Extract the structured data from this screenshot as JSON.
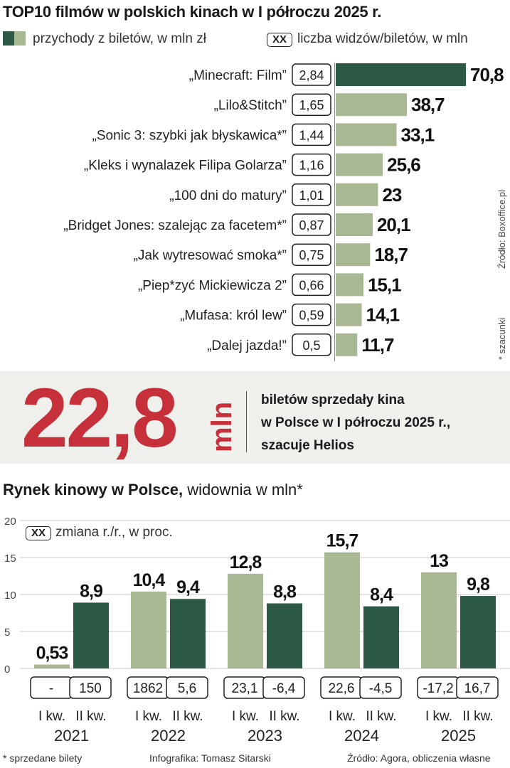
{
  "top10": {
    "title": "TOP10 filmów w polskich kinach w I półroczu 2025 r.",
    "legend_revenue": "przychody z biletów, w mln zł",
    "legend_box": "XX",
    "legend_viewers": "liczba widzów/biletów, w mln",
    "source": "Źródło: Boxoffice.pl",
    "note": "* szacunki"
  },
  "highlight": {
    "value": "22,8",
    "unit": "mln",
    "line1": "biletów sprzedały kina",
    "line2": "w Polsce w I półroczu 2025 r.,",
    "line3": "szacuje Helios"
  },
  "market": {
    "title_bold": "Rynek kinowy w Polsce,",
    "title_rest": " widownia w mln*",
    "legend_box": "XX",
    "legend_change": "zmiana r./r., w proc."
  },
  "footer": {
    "note": "* sprzedane bilety",
    "author": "Infografika: Tomasz Sitarski",
    "source": "Źródło: Agora, obliczenia własne"
  },
  "colors": {
    "dark_green": "#2d5a45",
    "light_green": "#a8b893",
    "accent_red": "#c5303a"
  },
  "chart_data": [
    {
      "type": "bar",
      "orientation": "horizontal",
      "title": "TOP10 filmów w polskich kinach w I półroczu 2025 r.",
      "categories": [
        "„Minecraft: Film”",
        "„Lilo&Stitch”",
        "„Sonic 3: szybki jak błyskawica*”",
        "„Kleks i wynalazek Filipa Golarza”",
        "„100 dni do matury”",
        "„Bridget Jones: szalejąc za facetem*”",
        "„Jak wytresować smoka*”",
        "„Piep*zyć Mickiewicza 2”",
        "„Mufasa: król lew”",
        "„Dalej jazda!”"
      ],
      "values": [
        70.8,
        38.7,
        33.1,
        25.6,
        23,
        20.1,
        18.7,
        15.1,
        14.1,
        11.7
      ],
      "value_labels": [
        "70,8",
        "38,7",
        "33,1",
        "25,6",
        "23",
        "20,1",
        "18,7",
        "15,1",
        "14,1",
        "11,7"
      ],
      "viewers": [
        "2,84",
        "1,65",
        "1,44",
        "1,16",
        "1,01",
        "0,87",
        "0,75",
        "0,66",
        "0,59",
        "0,5"
      ],
      "highlight_index": 0
    },
    {
      "type": "bar",
      "title": "Rynek kinowy w Polsce, widownia w mln*",
      "groups": [
        {
          "year": "2021",
          "bars": [
            {
              "quarter": "I kw.",
              "value": 0.53,
              "label": "0,53",
              "change": "-"
            },
            {
              "quarter": "II kw.",
              "value": 8.9,
              "label": "8,9",
              "change": "150"
            }
          ]
        },
        {
          "year": "2022",
          "bars": [
            {
              "quarter": "I kw.",
              "value": 10.4,
              "label": "10,4",
              "change": "1862"
            },
            {
              "quarter": "II kw.",
              "value": 9.4,
              "label": "9,4",
              "change": "5,6"
            }
          ]
        },
        {
          "year": "2023",
          "bars": [
            {
              "quarter": "I kw.",
              "value": 12.8,
              "label": "12,8",
              "change": "23,1"
            },
            {
              "quarter": "II kw.",
              "value": 8.8,
              "label": "8,8",
              "change": "-6,4"
            }
          ]
        },
        {
          "year": "2024",
          "bars": [
            {
              "quarter": "I kw.",
              "value": 15.7,
              "label": "15,7",
              "change": "22,6"
            },
            {
              "quarter": "II kw.",
              "value": 8.4,
              "label": "8,4",
              "change": "-4,5"
            }
          ]
        },
        {
          "year": "2025",
          "bars": [
            {
              "quarter": "I kw.",
              "value": 13,
              "label": "13",
              "change": "-17,2"
            },
            {
              "quarter": "II kw.",
              "value": 9.8,
              "label": "9,8",
              "change": "16,7"
            }
          ]
        }
      ],
      "yticks": [
        "0",
        "5",
        "10",
        "15",
        "20"
      ],
      "ylim": [
        0,
        20
      ],
      "grid": true
    }
  ]
}
